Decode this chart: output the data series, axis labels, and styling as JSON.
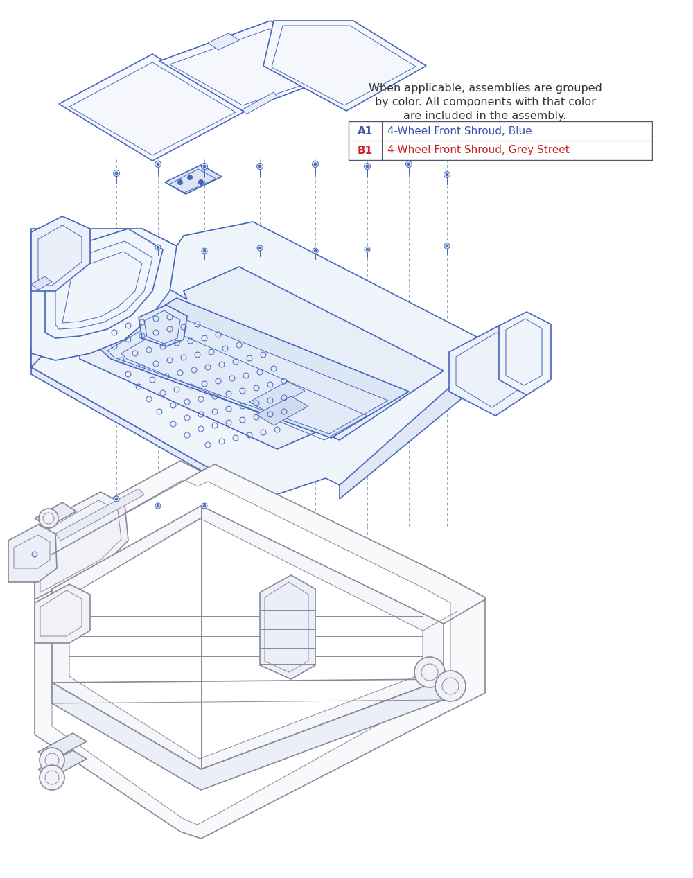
{
  "background_color": "#ffffff",
  "dc": "#4466bb",
  "dc2": "#6688cc",
  "gc": "#888899",
  "text_black": "#333333",
  "text_blue": "#3355aa",
  "text_red": "#cc2222",
  "legend_text_line1": "When applicable, assemblies are grouped",
  "legend_text_line2": "by color. All components with that color",
  "legend_text_line3": "are included in the assembly.",
  "legend_entries": [
    {
      "code": "A1",
      "desc": "4-Wheel Front Shroud, Blue",
      "color_text": "#3355aa"
    },
    {
      "code": "B1",
      "desc": "4-Wheel Front Shroud, Grey Street",
      "color_text": "#cc2222"
    }
  ],
  "figsize": [
    10.0,
    12.67
  ],
  "dpi": 100,
  "lw_main": 1.2,
  "lw_thin": 0.7,
  "lw_dash": 0.6
}
